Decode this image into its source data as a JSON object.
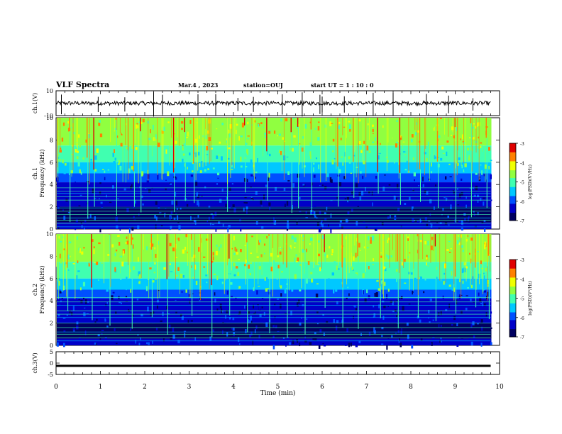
{
  "header": {
    "title": "VLF Spectra",
    "date": "Mar.4 , 2023",
    "station": "station=OUJ",
    "start": "start UT =  1 : 10 : 0"
  },
  "chart_data": [
    {
      "type": "line",
      "name": "ch1-waveform",
      "ylabel": "ch.1(V)",
      "ylim": [
        -10,
        10
      ],
      "yticks": [
        "10",
        "-10"
      ],
      "xlim": [
        0,
        10
      ],
      "baseline": 0,
      "spikes_at_min": [
        0.12,
        0.95,
        1.55,
        2.2,
        2.4,
        3.2,
        3.6,
        4.1,
        4.45,
        5.1,
        5.55,
        5.95,
        6.0,
        6.5,
        7.15,
        7.6,
        8.35,
        8.85,
        9.4
      ]
    },
    {
      "type": "heatmap",
      "name": "ch1-spectrogram",
      "ylabel": "ch.1\nFrequency (kHz)",
      "ylabel_lines": [
        "ch.1",
        "Frequency (kHz)"
      ],
      "ylim": [
        0,
        10
      ],
      "yticks": [
        "0",
        "2",
        "4",
        "6",
        "8",
        "10"
      ],
      "xlim": [
        0,
        9.8
      ],
      "colorbar": {
        "label": "log(PSD)(V²/Hz)",
        "range": [
          -7,
          -3
        ],
        "ticks": [
          "-3",
          "-4",
          "-5",
          "-6",
          "-7"
        ]
      },
      "low_band_khz": [
        0,
        4
      ],
      "high_band_khz": [
        5,
        10
      ],
      "spheric_times_min": [
        0.3,
        0.7,
        0.85,
        1.35,
        1.75,
        1.9,
        2.65,
        2.9,
        3.1,
        3.85,
        4.25,
        4.75,
        5.3,
        5.45,
        5.75,
        6.35,
        6.7,
        7.25,
        7.75,
        8.2,
        8.6,
        9.0,
        9.35,
        9.7
      ],
      "hum_lines_khz": [
        0.2,
        0.5,
        0.8,
        1.0,
        1.3,
        1.6,
        1.9,
        2.6,
        2.9,
        3.2,
        3.4,
        3.7
      ]
    },
    {
      "type": "heatmap",
      "name": "ch2-spectrogram",
      "ylabel": "ch.2\nFrequency (kHz)",
      "ylabel_lines": [
        "ch.2",
        "Frequency (kHz)"
      ],
      "ylim": [
        0,
        10
      ],
      "yticks": [
        "0",
        "2",
        "4",
        "6",
        "8",
        "10"
      ],
      "xlim": [
        0,
        9.8
      ],
      "colorbar": {
        "label": "log(PSD)(V²/Hz)",
        "range": [
          -7,
          -3
        ],
        "ticks": [
          "-3",
          "-4",
          "-5",
          "-6",
          "-7"
        ]
      },
      "low_band_khz": [
        0,
        4
      ],
      "high_band_khz": [
        5,
        10
      ],
      "spheric_times_min": [
        0.25,
        0.8,
        1.2,
        1.7,
        2.15,
        2.5,
        3.05,
        3.5,
        3.9,
        4.3,
        4.8,
        5.2,
        5.6,
        6.05,
        6.45,
        6.8,
        7.3,
        7.7,
        8.15,
        8.55,
        9.0,
        9.45,
        9.75
      ],
      "hum_lines_khz": [
        0.4,
        0.7,
        1.0,
        1.2,
        1.6,
        2.0,
        2.5,
        2.8,
        3.1,
        3.6,
        3.9,
        4.3
      ]
    },
    {
      "type": "line",
      "name": "ch3-waveform",
      "ylabel": "ch.3(V)",
      "ylim": [
        -5,
        5
      ],
      "yticks": [
        "5",
        "0",
        "-5"
      ],
      "xlim": [
        0,
        10
      ],
      "baseline": -1.2,
      "xlabel": "Time (min)",
      "xticks": [
        "0",
        "1",
        "2",
        "3",
        "4",
        "5",
        "6",
        "7",
        "8",
        "9",
        "10"
      ]
    }
  ],
  "colors": {
    "colormap": [
      "#000060",
      "#0000c8",
      "#0050ff",
      "#00c8ff",
      "#40ffb0",
      "#90ff40",
      "#f0ff00",
      "#ff8000",
      "#e00000"
    ]
  }
}
